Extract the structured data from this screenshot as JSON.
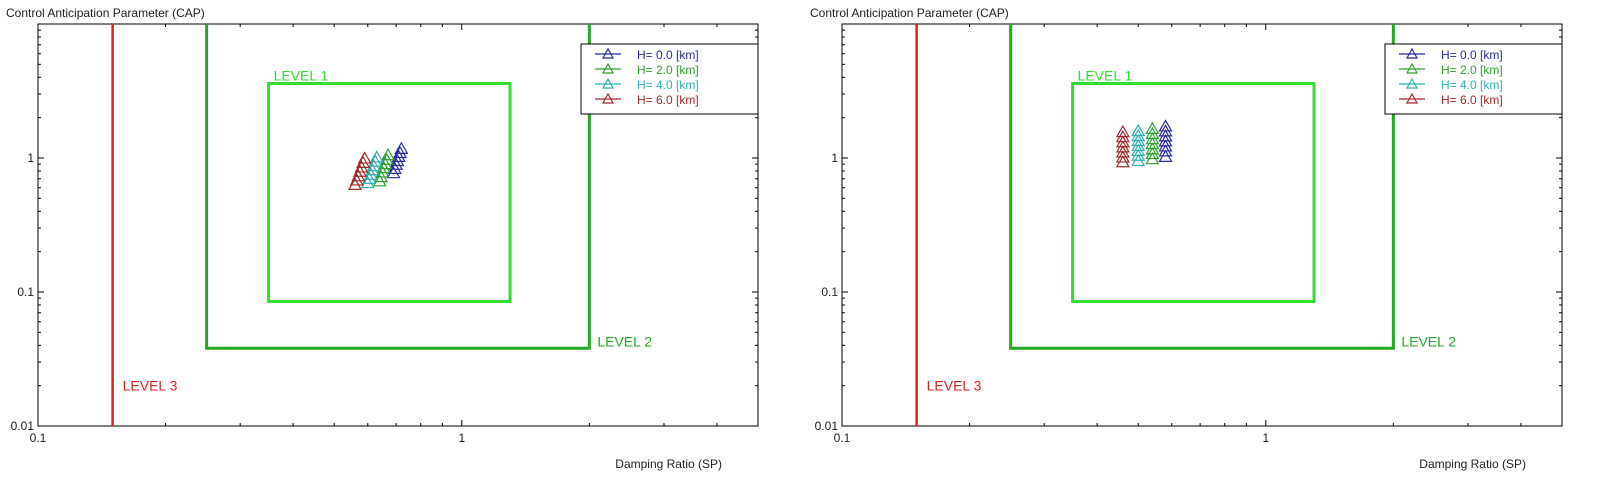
{
  "chart_data": [
    {
      "type": "scatter",
      "title": "",
      "ylabel": "Control Anticipation Parameter (CAP)",
      "xlabel": "Damping Ratio (SP)",
      "xscale": "log",
      "yscale": "log",
      "xlim": [
        0.1,
        5
      ],
      "ylim": [
        0.01,
        10
      ],
      "x_ticks": [
        "0.1",
        "1"
      ],
      "y_ticks": [
        "0.01",
        "0.1",
        "1"
      ],
      "grid": false,
      "legend_position": "top-right",
      "regions": [
        {
          "label": "LEVEL 1",
          "color": "#33dd33",
          "x": [
            0.35,
            1.3
          ],
          "y": [
            0.085,
            3.6
          ]
        },
        {
          "label": "LEVEL 2",
          "color": "#22aa22",
          "x": [
            0.25,
            2.0
          ],
          "y": [
            0.038,
            10
          ]
        },
        {
          "label": "LEVEL 3",
          "color": "#dd2222",
          "x": [
            0.15
          ],
          "y": [
            0.01,
            10
          ]
        }
      ],
      "series": [
        {
          "name": "H= 0.0 [km]",
          "color": "#2a2aa0",
          "x": [
            0.69,
            0.695,
            0.7,
            0.705,
            0.71,
            0.715,
            0.72
          ],
          "y": [
            0.77,
            0.83,
            0.89,
            0.95,
            1.02,
            1.09,
            1.17
          ]
        },
        {
          "name": "H= 2.0 [km]",
          "color": "#30a030",
          "x": [
            0.64,
            0.645,
            0.65,
            0.655,
            0.66,
            0.665,
            0.67
          ],
          "y": [
            0.67,
            0.72,
            0.78,
            0.84,
            0.9,
            0.97,
            1.05
          ]
        },
        {
          "name": "H= 4.0 [km]",
          "color": "#30b0b0",
          "x": [
            0.6,
            0.605,
            0.61,
            0.615,
            0.62,
            0.625,
            0.63
          ],
          "y": [
            0.65,
            0.7,
            0.75,
            0.81,
            0.87,
            0.94,
            1.01
          ]
        },
        {
          "name": "H= 6.0 [km]",
          "color": "#a02a2a",
          "x": [
            0.56,
            0.565,
            0.57,
            0.575,
            0.58,
            0.585,
            0.59
          ],
          "y": [
            0.63,
            0.68,
            0.73,
            0.79,
            0.85,
            0.92,
            0.99
          ]
        }
      ]
    },
    {
      "type": "scatter",
      "title": "",
      "ylabel": "Control Anticipation Parameter (CAP)",
      "xlabel": "Damping Ratio (SP)",
      "xscale": "log",
      "yscale": "log",
      "xlim": [
        0.1,
        5
      ],
      "ylim": [
        0.01,
        10
      ],
      "x_ticks": [
        "0.1",
        "1"
      ],
      "y_ticks": [
        "0.01",
        "0.1",
        "1"
      ],
      "grid": false,
      "legend_position": "top-right",
      "regions": [
        {
          "label": "LEVEL 1",
          "color": "#33dd33",
          "x": [
            0.35,
            1.3
          ],
          "y": [
            0.085,
            3.6
          ]
        },
        {
          "label": "LEVEL 2",
          "color": "#22aa22",
          "x": [
            0.25,
            2.0
          ],
          "y": [
            0.038,
            10
          ]
        },
        {
          "label": "LEVEL 3",
          "color": "#dd2222",
          "x": [
            0.15
          ],
          "y": [
            0.01,
            10
          ]
        }
      ],
      "series": [
        {
          "name": "H= 0.0 [km]",
          "color": "#2a2aa0",
          "x": [
            0.58,
            0.58,
            0.58,
            0.58,
            0.58,
            0.58,
            0.58
          ],
          "y": [
            1.02,
            1.12,
            1.22,
            1.33,
            1.45,
            1.58,
            1.72
          ]
        },
        {
          "name": "H= 2.0 [km]",
          "color": "#30a030",
          "x": [
            0.54,
            0.54,
            0.54,
            0.54,
            0.54,
            0.54,
            0.54
          ],
          "y": [
            0.98,
            1.07,
            1.16,
            1.27,
            1.38,
            1.51,
            1.65
          ]
        },
        {
          "name": "H= 4.0 [km]",
          "color": "#30b0b0",
          "x": [
            0.5,
            0.5,
            0.5,
            0.5,
            0.5,
            0.5,
            0.5
          ],
          "y": [
            0.95,
            1.04,
            1.13,
            1.23,
            1.34,
            1.46,
            1.59
          ]
        },
        {
          "name": "H= 6.0 [km]",
          "color": "#a02a2a",
          "x": [
            0.46,
            0.46,
            0.46,
            0.46,
            0.46,
            0.46,
            0.46
          ],
          "y": [
            0.93,
            1.01,
            1.1,
            1.2,
            1.31,
            1.43,
            1.56
          ]
        }
      ]
    }
  ]
}
